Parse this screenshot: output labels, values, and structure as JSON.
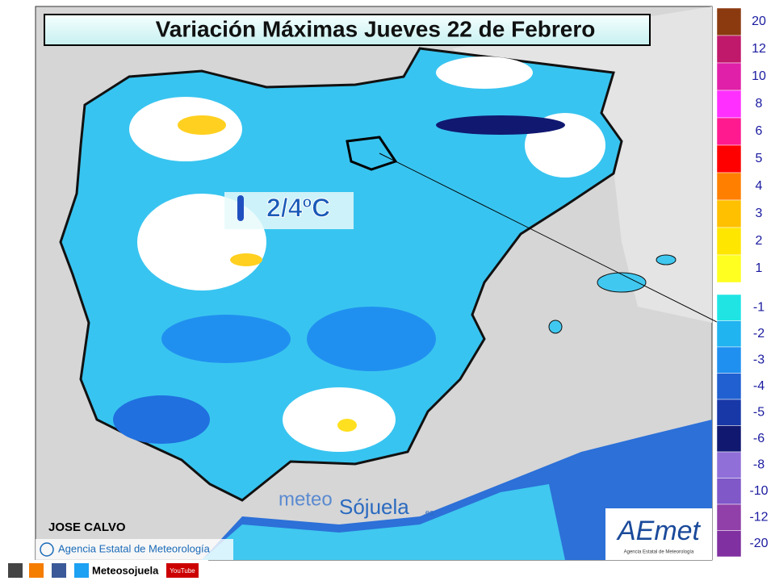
{
  "header": {
    "title": "Variación Máximas Jueves 22 de Febrero"
  },
  "map": {
    "annotation": "2/4ºC",
    "author": "JOSE CALVO",
    "copyright": "Agencia Estatal de Meteorología",
    "watermark": {
      "prefix": "meteo",
      "brand": "Sójuela",
      "suffix": ".es"
    },
    "logo": {
      "name": "AEmet",
      "subtitle": "Agencia Estatal de Meteorología"
    }
  },
  "legend": {
    "upper": [
      {
        "label": "20",
        "color": "#8b3a10"
      },
      {
        "label": "12",
        "color": "#c0186a"
      },
      {
        "label": "10",
        "color": "#e020a8"
      },
      {
        "label": "8",
        "color": "#ff30ff"
      },
      {
        "label": "6",
        "color": "#ff1a90"
      },
      {
        "label": "5",
        "color": "#ff0000"
      },
      {
        "label": "4",
        "color": "#ff7f00"
      },
      {
        "label": "3",
        "color": "#ffc000"
      },
      {
        "label": "2",
        "color": "#ffe600"
      },
      {
        "label": "1",
        "color": "#ffff20"
      }
    ],
    "lower": [
      {
        "label": "-1",
        "color": "#20e4e4"
      },
      {
        "label": "-2",
        "color": "#20b4f0"
      },
      {
        "label": "-3",
        "color": "#2090f0"
      },
      {
        "label": "-4",
        "color": "#2060d0"
      },
      {
        "label": "-5",
        "color": "#1838a8"
      },
      {
        "label": "-6",
        "color": "#101870"
      },
      {
        "label": "-8",
        "color": "#9070d8"
      },
      {
        "label": "-10",
        "color": "#8058c8"
      },
      {
        "label": "-12",
        "color": "#9040a8"
      },
      {
        "label": "-20",
        "color": "#8030a0"
      }
    ]
  },
  "footer": {
    "social": "Meteosojuela",
    "video": "YouTube"
  }
}
